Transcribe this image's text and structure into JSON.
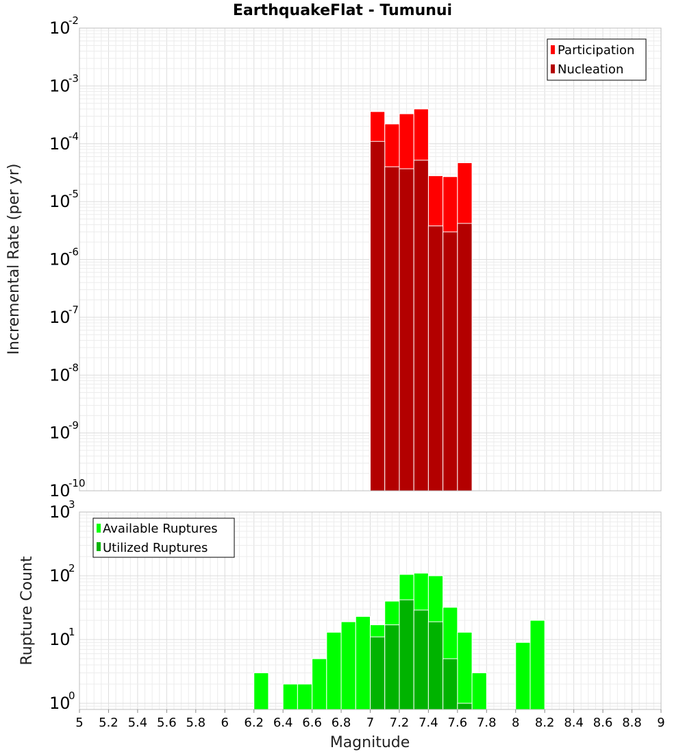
{
  "chart_data": [
    {
      "type": "bar",
      "title": "EarthquakeFlat - Tumunui",
      "xlabel": "",
      "ylabel": "Incremental Rate (per yr)",
      "yscale": "log",
      "ylim": [
        1e-10,
        0.01
      ],
      "xlim": [
        5,
        9
      ],
      "ytick_exponents": [
        "-10",
        "-9",
        "-8",
        "-7",
        "-6",
        "-5",
        "-4",
        "-3",
        "-2"
      ],
      "bin_width": 0.1,
      "legend": {
        "position": "top-right",
        "entries": [
          "Participation",
          "Nucleation"
        ]
      },
      "series": [
        {
          "name": "Participation",
          "color": "#ff0000",
          "x": [
            7.05,
            7.15,
            7.25,
            7.35,
            7.45,
            7.55,
            7.65
          ],
          "values": [
            0.00036,
            0.00022,
            0.00033,
            0.0004,
            2.8e-05,
            2.7e-05,
            4.7e-05
          ]
        },
        {
          "name": "Nucleation",
          "color": "#b30000",
          "x": [
            7.05,
            7.15,
            7.25,
            7.35,
            7.45,
            7.55,
            7.65
          ],
          "values": [
            0.00011,
            4e-05,
            3.7e-05,
            5.2e-05,
            3.8e-06,
            3e-06,
            4.2e-06
          ]
        }
      ]
    },
    {
      "type": "bar",
      "xlabel": "Magnitude",
      "ylabel": "Rupture Count",
      "yscale": "log",
      "ylim": [
        0.8,
        1000
      ],
      "xlim": [
        5,
        9
      ],
      "ytick_exponents": [
        "0",
        "1",
        "2",
        "3"
      ],
      "bin_width": 0.1,
      "legend": {
        "position": "top-left",
        "entries": [
          "Available Ruptures",
          "Utilized Ruptures"
        ]
      },
      "series": [
        {
          "name": "Available Ruptures",
          "color": "#00ff00",
          "x": [
            6.25,
            6.45,
            6.55,
            6.65,
            6.75,
            6.85,
            6.95,
            7.05,
            7.15,
            7.25,
            7.35,
            7.45,
            7.55,
            7.65,
            7.75,
            8.05,
            8.15
          ],
          "values": [
            3,
            2,
            2,
            5,
            13,
            19,
            23,
            17,
            40,
            105,
            110,
            100,
            32,
            13,
            3,
            9,
            20
          ]
        },
        {
          "name": "Utilized Ruptures",
          "color": "#00b300",
          "x": [
            7.05,
            7.15,
            7.25,
            7.35,
            7.45,
            7.55,
            7.65
          ],
          "values": [
            11,
            17,
            42,
            29,
            19,
            5,
            1
          ]
        }
      ]
    }
  ],
  "x_ticks": [
    "5",
    "5.2",
    "5.4",
    "5.6",
    "5.8",
    "6",
    "6.2",
    "6.4",
    "6.6",
    "6.8",
    "7",
    "7.2",
    "7.4",
    "7.6",
    "7.8",
    "8",
    "8.2",
    "8.4",
    "8.6",
    "8.8",
    "9"
  ]
}
